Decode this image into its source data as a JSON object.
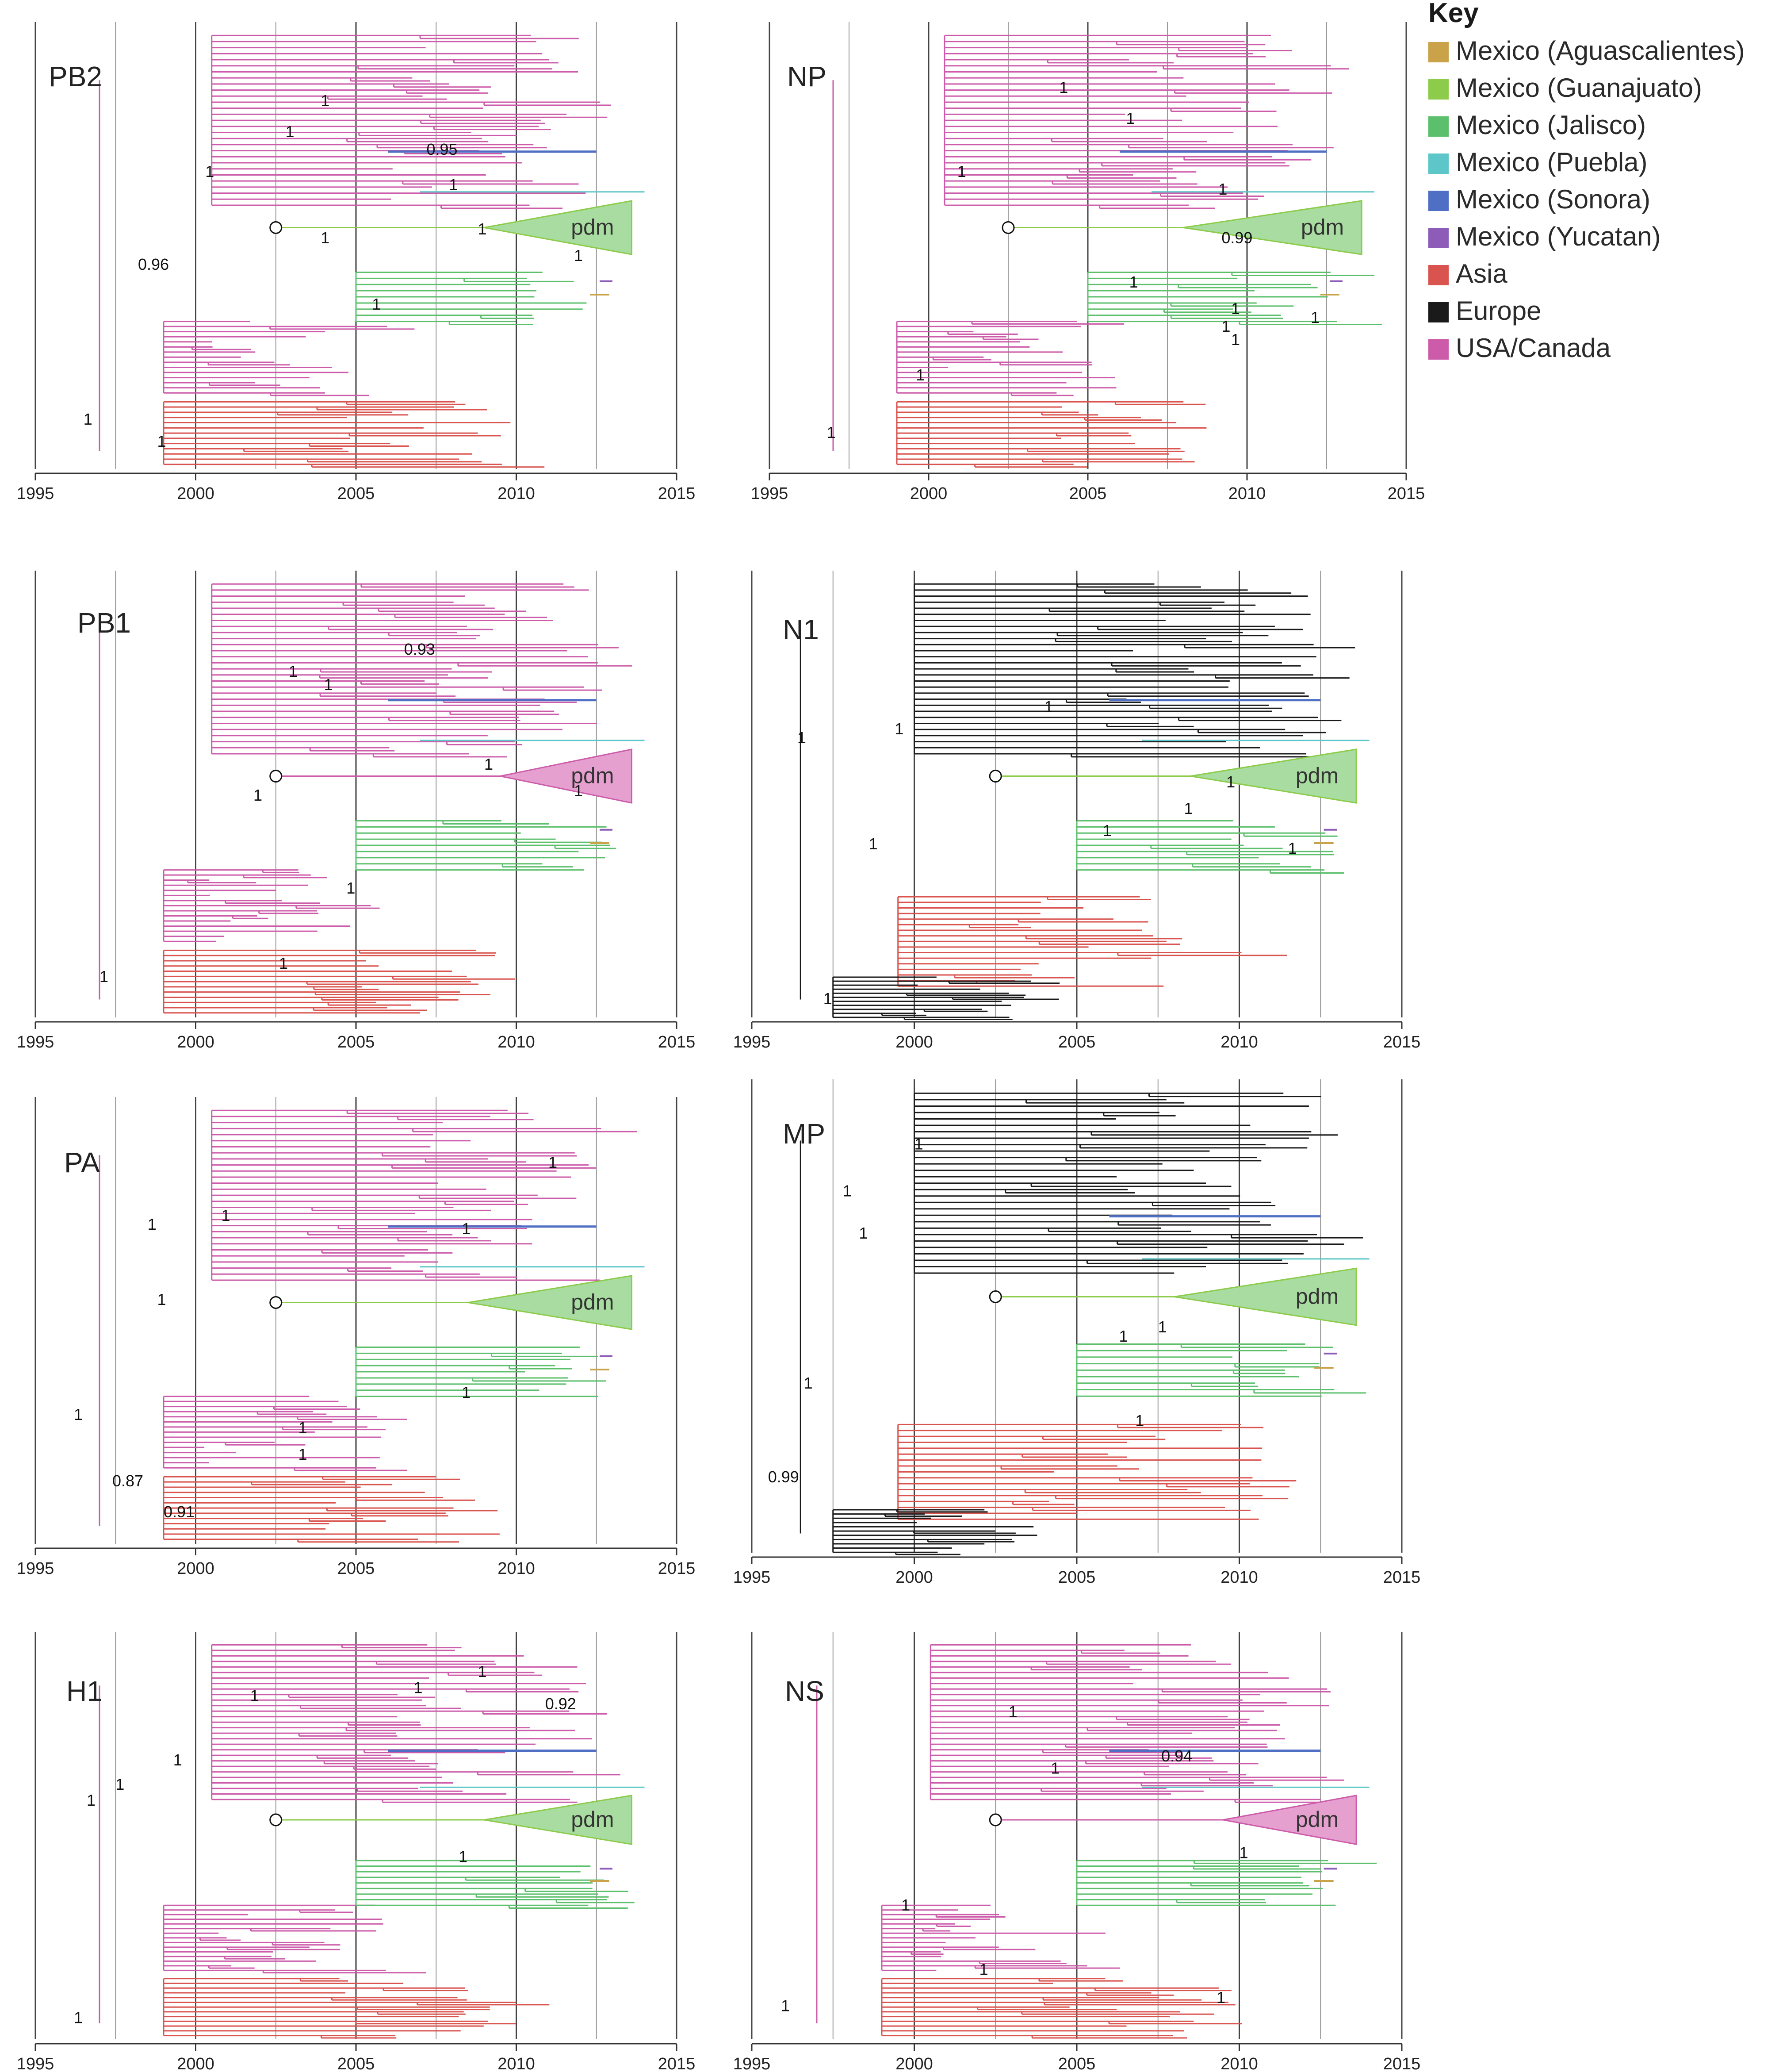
{
  "legend": {
    "title": "Key",
    "items": [
      {
        "label": "Mexico (Aguascalientes)",
        "color": "#c9a24a"
      },
      {
        "label": "Mexico (Guanajuato)",
        "color": "#8ccc4a"
      },
      {
        "label": "Mexico (Jalisco)",
        "color": "#5cbf6c"
      },
      {
        "label": "Mexico (Puebla)",
        "color": "#5cc6c8"
      },
      {
        "label": "Mexico (Sonora)",
        "color": "#4f6fc4"
      },
      {
        "label": "Mexico (Yucatan)",
        "color": "#8c5cb8"
      },
      {
        "label": "Asia",
        "color": "#d9534f"
      },
      {
        "label": "Europe",
        "color": "#1a1a1a"
      },
      {
        "label": "USA/Canada",
        "color": "#cc5caa"
      }
    ]
  },
  "axis": {
    "ticks": [
      "1995",
      "2000",
      "2005",
      "2010",
      "2015"
    ],
    "range": [
      1995,
      2015
    ]
  },
  "pdm_label": "pdm",
  "panels": [
    {
      "id": "pb2",
      "title": "PB2",
      "family": "usa",
      "pdm": "green",
      "pdm_year": 2009,
      "supports": [
        {
          "text": "1",
          "year": 2003.9,
          "frac": 0.18
        },
        {
          "text": "0.95",
          "year": 2007.2,
          "frac": 0.29
        },
        {
          "text": "1",
          "year": 2000.3,
          "frac": 0.34
        },
        {
          "text": "1",
          "year": 2002.8,
          "frac": 0.25
        },
        {
          "text": "1",
          "year": 2007.9,
          "frac": 0.37
        },
        {
          "text": "1",
          "year": 2003.9,
          "frac": 0.49
        },
        {
          "text": "1",
          "year": 2008.8,
          "frac": 0.47
        },
        {
          "text": "0.96",
          "year": 1998.2,
          "frac": 0.55
        },
        {
          "text": "1",
          "year": 2011.8,
          "frac": 0.53
        },
        {
          "text": "1",
          "year": 2005.5,
          "frac": 0.64
        },
        {
          "text": "1",
          "year": 1996.5,
          "frac": 0.9
        },
        {
          "text": "1",
          "year": 1998.8,
          "frac": 0.95
        }
      ]
    },
    {
      "id": "np",
      "title": "NP",
      "family": "usa",
      "pdm": "green",
      "pdm_year": 2008,
      "supports": [
        {
          "text": "1",
          "year": 2004.1,
          "frac": 0.15
        },
        {
          "text": "1",
          "year": 2006.2,
          "frac": 0.22
        },
        {
          "text": "1",
          "year": 2000.9,
          "frac": 0.34
        },
        {
          "text": "1",
          "year": 2009.1,
          "frac": 0.38
        },
        {
          "text": "0.99",
          "year": 2009.2,
          "frac": 0.49
        },
        {
          "text": "1",
          "year": 2006.3,
          "frac": 0.59
        },
        {
          "text": "1",
          "year": 2009.5,
          "frac": 0.65
        },
        {
          "text": "1",
          "year": 2012.0,
          "frac": 0.67
        },
        {
          "text": "1",
          "year": 2009.2,
          "frac": 0.69
        },
        {
          "text": "1",
          "year": 2009.5,
          "frac": 0.72
        },
        {
          "text": "1",
          "year": 1999.6,
          "frac": 0.8
        },
        {
          "text": "1",
          "year": 1996.8,
          "frac": 0.93
        }
      ]
    },
    {
      "id": "pb1",
      "title": "PB1",
      "family": "usa",
      "pdm": "pink",
      "pdm_year": 2009.5,
      "supports": [
        {
          "text": "0.93",
          "year": 2006.5,
          "frac": 0.18
        },
        {
          "text": "1",
          "year": 2002.9,
          "frac": 0.23
        },
        {
          "text": "1",
          "year": 2004.0,
          "frac": 0.26
        },
        {
          "text": "1",
          "year": 2009.0,
          "frac": 0.44
        },
        {
          "text": "1",
          "year": 2001.8,
          "frac": 0.51
        },
        {
          "text": "1",
          "year": 2011.8,
          "frac": 0.5
        },
        {
          "text": "1",
          "year": 2004.7,
          "frac": 0.72
        },
        {
          "text": "1",
          "year": 1997.0,
          "frac": 0.92
        },
        {
          "text": "1",
          "year": 2002.6,
          "frac": 0.89
        }
      ]
    },
    {
      "id": "n1",
      "title": "N1",
      "family": "eu",
      "pdm": "green",
      "pdm_year": 2008.5,
      "supports": [
        {
          "text": "1",
          "year": 1999.4,
          "frac": 0.36
        },
        {
          "text": "1",
          "year": 2004.0,
          "frac": 0.31
        },
        {
          "text": "1",
          "year": 1996.4,
          "frac": 0.38
        },
        {
          "text": "1",
          "year": 2009.6,
          "frac": 0.48
        },
        {
          "text": "1",
          "year": 2008.3,
          "frac": 0.54
        },
        {
          "text": "1",
          "year": 2005.8,
          "frac": 0.59
        },
        {
          "text": "1",
          "year": 1998.6,
          "frac": 0.62
        },
        {
          "text": "1",
          "year": 2011.5,
          "frac": 0.63
        },
        {
          "text": "1",
          "year": 1997.2,
          "frac": 0.97
        }
      ]
    },
    {
      "id": "pa",
      "title": "PA",
      "family": "usa",
      "pdm": "green",
      "pdm_year": 2008.5,
      "supports": [
        {
          "text": "1",
          "year": 2011.0,
          "frac": 0.15
        },
        {
          "text": "1",
          "year": 2000.8,
          "frac": 0.27
        },
        {
          "text": "1",
          "year": 1998.5,
          "frac": 0.29
        },
        {
          "text": "1",
          "year": 2008.3,
          "frac": 0.3
        },
        {
          "text": "1",
          "year": 1998.8,
          "frac": 0.46
        },
        {
          "text": "1",
          "year": 2008.3,
          "frac": 0.67
        },
        {
          "text": "1",
          "year": 1996.2,
          "frac": 0.72
        },
        {
          "text": "1",
          "year": 2003.2,
          "frac": 0.75
        },
        {
          "text": "1",
          "year": 2003.2,
          "frac": 0.81
        },
        {
          "text": "0.87",
          "year": 1997.4,
          "frac": 0.87
        },
        {
          "text": "0.91",
          "year": 1999.0,
          "frac": 0.94
        }
      ]
    },
    {
      "id": "mp",
      "title": "MP",
      "family": "eu",
      "pdm": "green",
      "pdm_year": 2008,
      "supports": [
        {
          "text": "1",
          "year": 2000.0,
          "frac": 0.14
        },
        {
          "text": "1",
          "year": 1997.8,
          "frac": 0.24
        },
        {
          "text": "1",
          "year": 1998.3,
          "frac": 0.33
        },
        {
          "text": "1",
          "year": 2006.3,
          "frac": 0.55
        },
        {
          "text": "1",
          "year": 2007.5,
          "frac": 0.53
        },
        {
          "text": "1",
          "year": 1996.6,
          "frac": 0.65
        },
        {
          "text": "1",
          "year": 2006.8,
          "frac": 0.73
        },
        {
          "text": "0.99",
          "year": 1995.5,
          "frac": 0.85
        }
      ]
    },
    {
      "id": "h1",
      "title": "H1",
      "family": "usa",
      "pdm": "green",
      "pdm_year": 2009,
      "supports": [
        {
          "text": "1",
          "year": 2006.8,
          "frac": 0.14
        },
        {
          "text": "1",
          "year": 2008.8,
          "frac": 0.1
        },
        {
          "text": "0.92",
          "year": 2010.9,
          "frac": 0.18
        },
        {
          "text": "1",
          "year": 2001.7,
          "frac": 0.16
        },
        {
          "text": "1",
          "year": 1999.3,
          "frac": 0.32
        },
        {
          "text": "1",
          "year": 1997.5,
          "frac": 0.38
        },
        {
          "text": "1",
          "year": 1996.6,
          "frac": 0.42
        },
        {
          "text": "1",
          "year": 2008.2,
          "frac": 0.56
        },
        {
          "text": "1",
          "year": 1996.2,
          "frac": 0.96
        }
      ]
    },
    {
      "id": "ns",
      "title": "NS",
      "family": "usa",
      "pdm": "pink",
      "pdm_year": 2009.5,
      "supports": [
        {
          "text": "1",
          "year": 2002.9,
          "frac": 0.2
        },
        {
          "text": "0.94",
          "year": 2007.6,
          "frac": 0.31
        },
        {
          "text": "1",
          "year": 2004.2,
          "frac": 0.34
        },
        {
          "text": "1",
          "year": 2010.0,
          "frac": 0.55
        },
        {
          "text": "1",
          "year": 1999.6,
          "frac": 0.68
        },
        {
          "text": "1",
          "year": 2002.0,
          "frac": 0.84
        },
        {
          "text": "1",
          "year": 2009.3,
          "frac": 0.91
        },
        {
          "text": "1",
          "year": 1995.9,
          "frac": 0.93
        }
      ]
    }
  ]
}
